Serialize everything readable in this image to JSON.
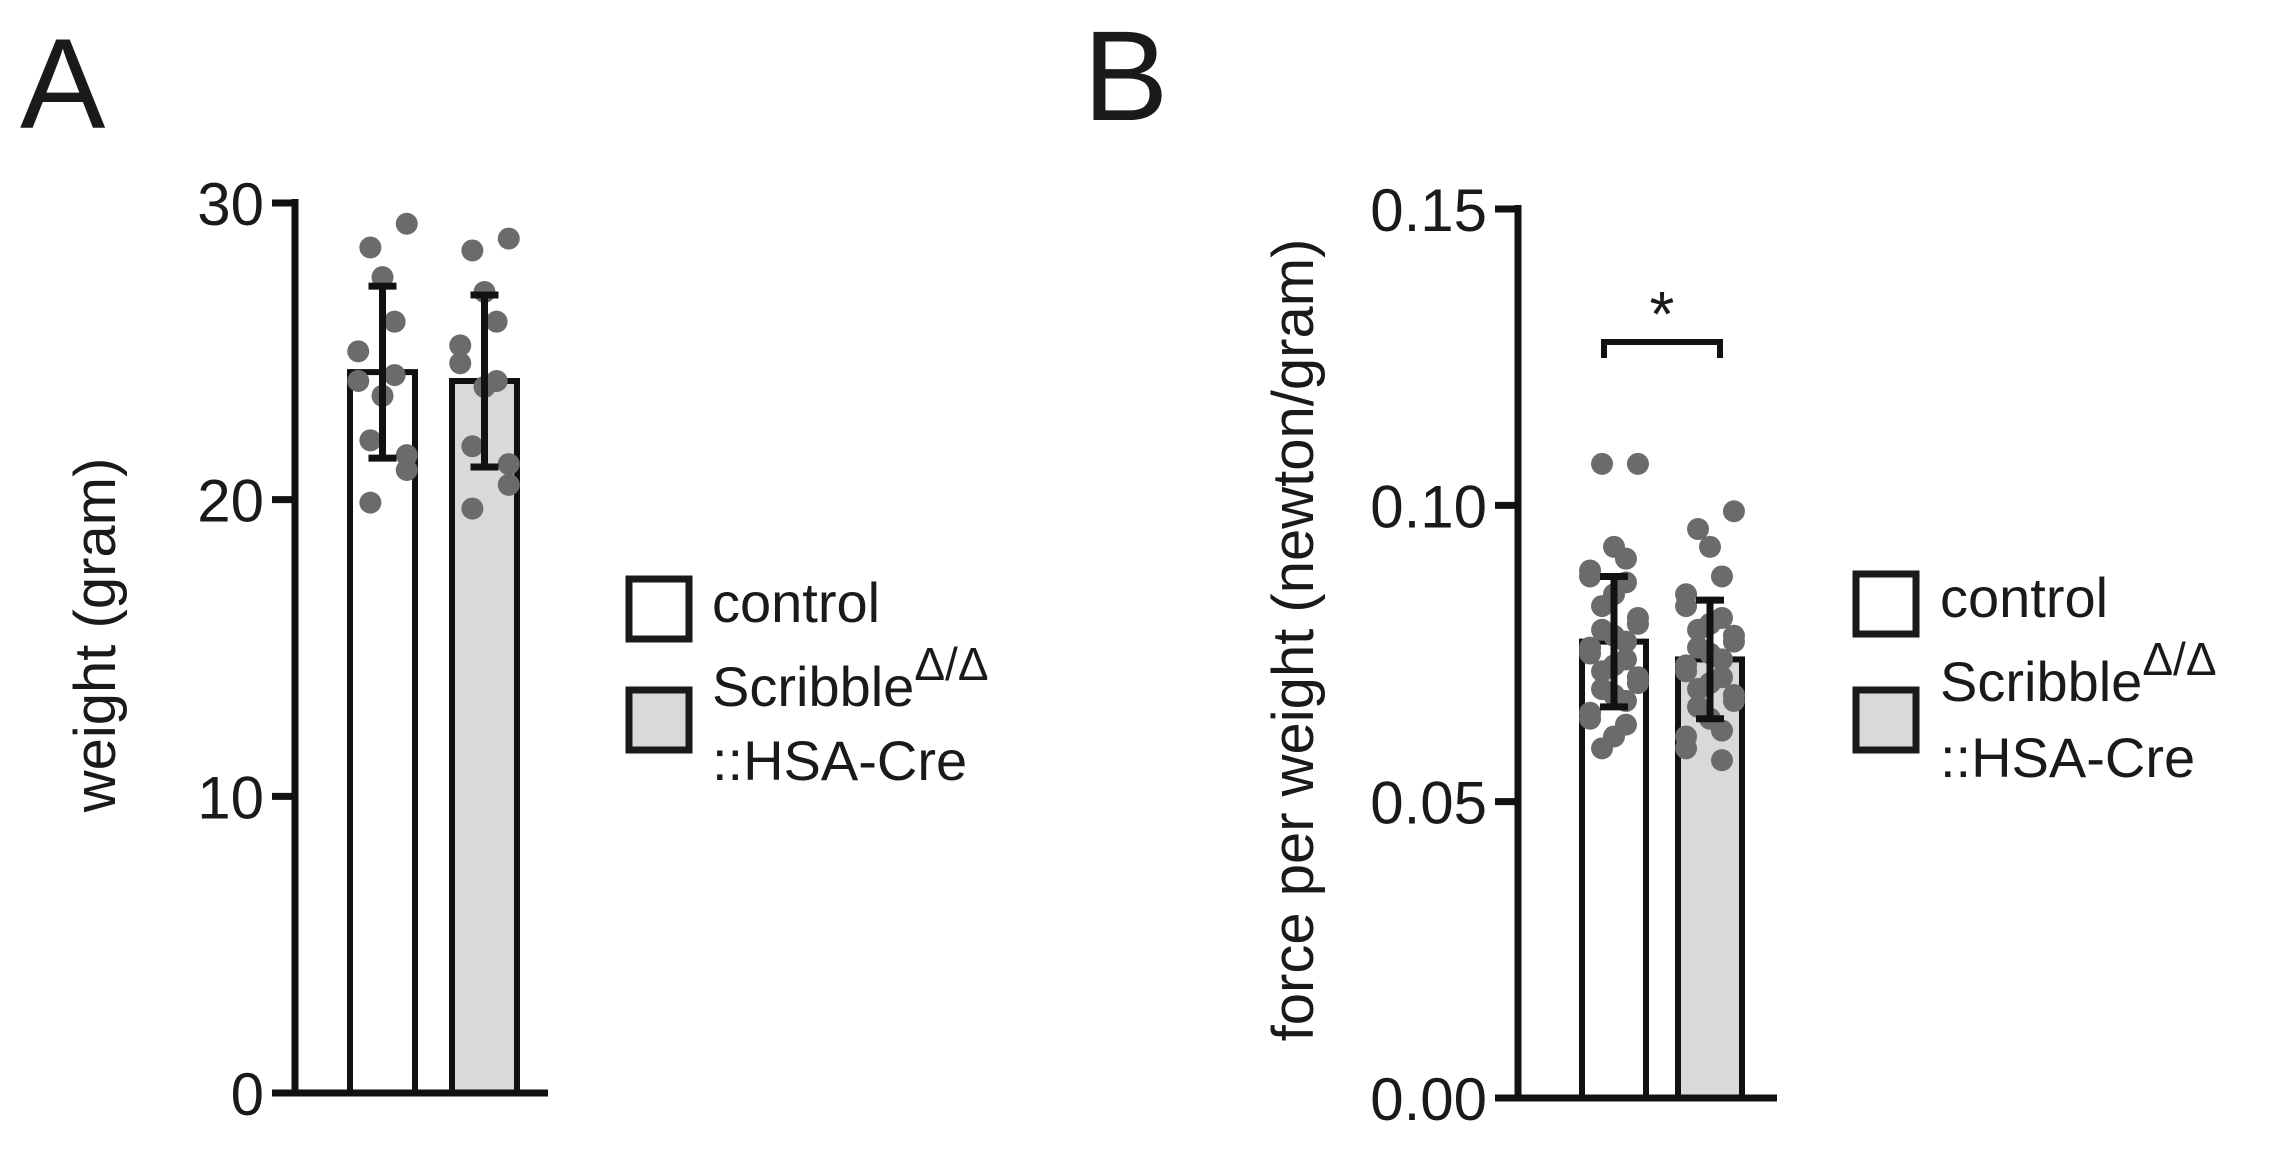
{
  "colors": {
    "ink": "#111111",
    "control_fill": "#ffffff",
    "scribble_fill": "#d9d9d9",
    "dots": "#6b6b6b"
  },
  "chart_data": [
    {
      "type": "bar",
      "panel_label": "A",
      "ylabel": "weight (gram)",
      "ylim": [
        0,
        30
      ],
      "yticks": [
        0,
        10,
        20,
        30
      ],
      "ytick_labels": [
        "0",
        "10",
        "20",
        "30"
      ],
      "grid": false,
      "categories": [
        "control",
        "ScribbleΔ/Δ ::HSA-Cre"
      ],
      "values": [
        24.3,
        24.0
      ],
      "error": [
        2.9,
        2.9
      ],
      "points": [
        [
          29.3,
          28.5,
          27.5,
          26.0,
          25.0,
          24.0,
          24.2,
          23.5,
          22.0,
          21.5,
          21.0,
          19.9
        ],
        [
          28.8,
          28.4,
          27.0,
          26.0,
          25.2,
          24.6,
          24.0,
          23.8,
          21.8,
          21.2,
          20.5,
          19.7
        ]
      ],
      "significance": null
    },
    {
      "type": "bar",
      "panel_label": "B",
      "ylabel": "force per weight (newton/gram)",
      "ylim": [
        0,
        0.15
      ],
      "yticks": [
        0,
        0.05,
        0.1,
        0.15
      ],
      "ytick_labels": [
        "0.00",
        "0.05",
        "0.10",
        "0.15"
      ],
      "grid": false,
      "categories": [
        "control",
        "ScribbleΔ/Δ ::HSA-Cre"
      ],
      "values": [
        0.077,
        0.074
      ],
      "error": [
        0.011,
        0.01
      ],
      "points": [
        [
          0.107,
          0.107,
          0.093,
          0.091,
          0.089,
          0.088,
          0.087,
          0.085,
          0.083,
          0.081,
          0.08,
          0.079,
          0.078,
          0.077,
          0.076,
          0.075,
          0.074,
          0.073,
          0.072,
          0.071,
          0.07,
          0.069,
          0.068,
          0.067,
          0.065,
          0.064,
          0.063,
          0.061,
          0.059
        ],
        [
          0.099,
          0.096,
          0.093,
          0.088,
          0.085,
          0.083,
          0.081,
          0.08,
          0.079,
          0.078,
          0.077,
          0.076,
          0.075,
          0.074,
          0.073,
          0.072,
          0.071,
          0.07,
          0.069,
          0.068,
          0.067,
          0.066,
          0.064,
          0.062,
          0.061,
          0.059,
          0.057
        ]
      ],
      "significance": {
        "label": "*",
        "between": [
          0,
          1
        ]
      }
    }
  ],
  "legend": {
    "control_label": "control",
    "scribble_label_main": "Scribble",
    "scribble_label_sup": "Δ/Δ",
    "scribble_label_line2": "::HSA-Cre"
  }
}
